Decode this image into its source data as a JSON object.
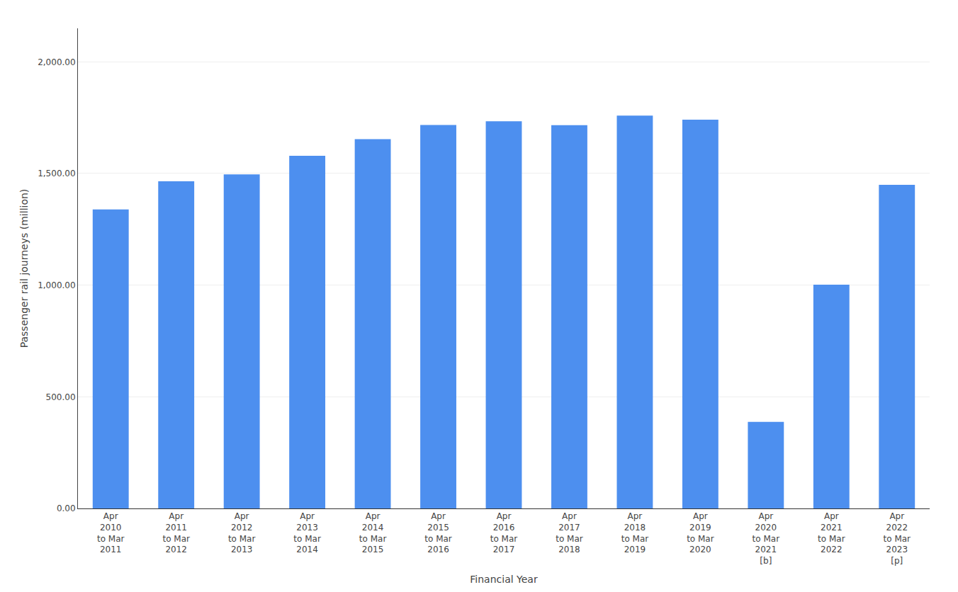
{
  "chart_data": {
    "type": "bar",
    "xlabel": "Financial Year",
    "ylabel": "Passenger rail journeys (million)",
    "categories": [
      "Apr\n2010\nto Mar\n2011",
      "Apr\n2011\nto Mar\n2012",
      "Apr\n2012\nto Mar\n2013",
      "Apr\n2013\nto Mar\n2014",
      "Apr\n2014\nto Mar\n2015",
      "Apr\n2015\nto Mar\n2016",
      "Apr\n2016\nto Mar\n2017",
      "Apr\n2017\nto Mar\n2018",
      "Apr\n2018\nto Mar\n2019",
      "Apr\n2019\nto Mar\n2020",
      "Apr\n2020\nto Mar\n2021\n[b]",
      "Apr\n2021\nto Mar\n2022",
      "Apr\n2022\nto Mar\n2023\n[p]"
    ],
    "values": [
      1339,
      1465,
      1496,
      1579,
      1654,
      1717,
      1734,
      1716,
      1759,
      1741,
      388,
      1002,
      1449
    ],
    "color": "#4d8fef",
    "ylim": [
      0,
      2150
    ],
    "yticks": [
      {
        "value": 0,
        "label": "0.00"
      },
      {
        "value": 500,
        "label": "500.00"
      },
      {
        "value": 1000,
        "label": "1,000.00"
      },
      {
        "value": 1500,
        "label": "1,500.00"
      },
      {
        "value": 2000,
        "label": "2,000.00"
      }
    ],
    "grid": true
  }
}
